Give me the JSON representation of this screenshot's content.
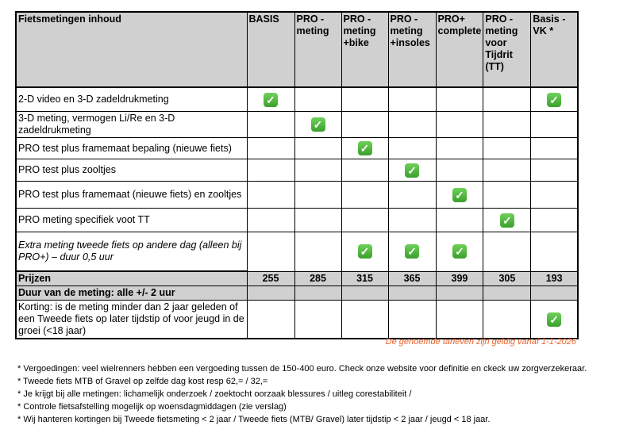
{
  "table": {
    "headers": [
      "Fietsmetingen inhoud",
      "BASIS",
      "PRO - meting",
      "PRO - meting +bike",
      "PRO - meting +insoles",
      "PRO+ complete",
      "PRO - meting voor Tijdrit (TT)",
      "Basis - VK  *"
    ],
    "rows": [
      {
        "label": "2-D video en 3-D zadeldrukmeting",
        "checks": [
          1,
          0,
          0,
          0,
          0,
          0,
          1
        ],
        "italic": false
      },
      {
        "label": "3-D meting, vermogen Li/Re en 3-D zadeldrukmeting",
        "checks": [
          0,
          1,
          0,
          0,
          0,
          0,
          0
        ],
        "italic": false
      },
      {
        "label": "PRO test plus framemaat bepaling (nieuwe fiets)",
        "checks": [
          0,
          0,
          1,
          0,
          0,
          0,
          0
        ],
        "italic": false
      },
      {
        "label": "PRO test plus zooltjes",
        "checks": [
          0,
          0,
          0,
          1,
          0,
          0,
          0
        ],
        "italic": false
      },
      {
        "label": "PRO test plus framemaat (nieuwe fiets) en zooltjes",
        "checks": [
          0,
          0,
          0,
          0,
          1,
          0,
          0
        ],
        "italic": false
      },
      {
        "label": "PRO meting specifiek voot TT",
        "checks": [
          0,
          0,
          0,
          0,
          0,
          1,
          0
        ],
        "italic": false
      },
      {
        "label": "Extra meting tweede fiets op andere dag (alleen bij PRO+) – duur 0,5 uur",
        "checks": [
          0,
          0,
          1,
          1,
          1,
          0,
          0
        ],
        "italic": true
      }
    ],
    "prices_label": "Prijzen",
    "prices": [
      "255",
      "285",
      "315",
      "365",
      "399",
      "305",
      "193"
    ],
    "duration_label": "Duur van de meting: alle +/- 2 uur",
    "discount": {
      "label": "Korting: is de meting minder dan 2 jaar geleden of een Tweede fiets op later tijdstip of voor jeugd in de groei (<18 jaar)",
      "checks": [
        0,
        0,
        0,
        0,
        0,
        0,
        1
      ]
    },
    "check_glyph": "✓"
  },
  "validity": "De genoemde tarieven zijn geldig vanaf 1-1-2026",
  "notes": [
    "* Vergoedingen: veel wielrenners hebben een vergoeding tussen de 150-400 euro. Check onze website voor definitie en ckeck uw zorgverzekeraar.",
    "* Tweede fiets MTB of Gravel op zelfde dag kost resp 62,= /  32,=",
    "* Je krijgt bij alle metingen: lichamelijk onderzoek / zoektocht oorzaak blessures / uitleg corestabiliteit /",
    "* Controle fietsafstelling mogelijk op woensdagmiddagen (zie verslag)",
    "* Wij hanteren kortingen bij Tweede fietsmeting < 2 jaar / Tweede fiets (MTB/ Gravel) later tijdstip < 2 jaar / jeugd < 18 jaar."
  ],
  "colors": {
    "header_bg": "#d0d0d0",
    "accent": "#e8622a",
    "check": "#4cb83a"
  }
}
